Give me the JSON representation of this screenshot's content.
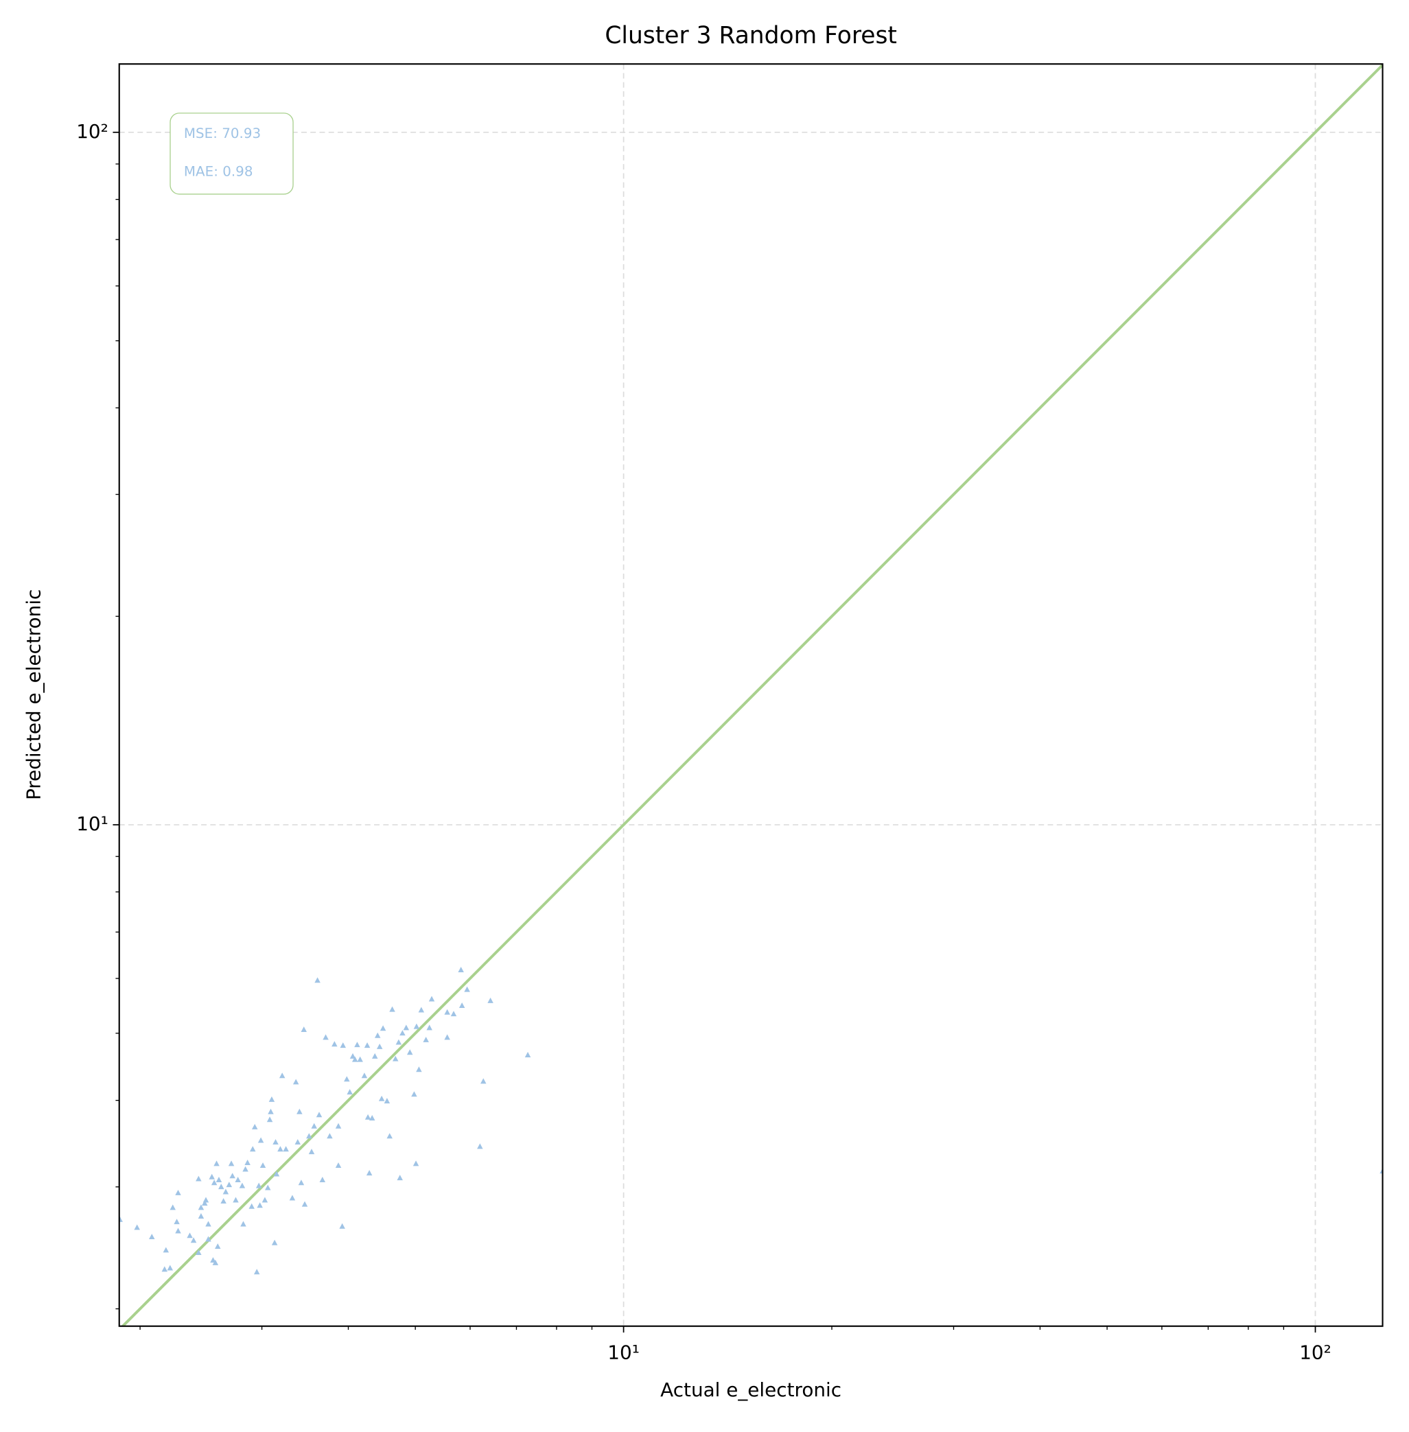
{
  "chart_data": {
    "type": "scatter",
    "title": "Cluster 3 Random Forest",
    "x_label": "Actual e_electronic",
    "y_label": "Predicted e_electronic",
    "log_x": true,
    "log_y": true,
    "grid": true,
    "xlim": [
      1.866,
      125.1
    ],
    "ylim": [
      1.888,
      125.5
    ],
    "xticks": [
      {
        "value": 10,
        "label": "10¹"
      },
      {
        "value": 100,
        "label": "10²"
      }
    ],
    "yticks": [
      {
        "value": 10,
        "label": "10¹"
      },
      {
        "value": 100,
        "label": "10²"
      }
    ],
    "xminorticks": [
      2,
      3,
      4,
      5,
      6,
      7,
      8,
      9,
      20,
      30,
      40,
      50,
      60,
      70,
      80,
      90
    ],
    "yminorticks": [
      2,
      3,
      4,
      5,
      6,
      7,
      8,
      9,
      20,
      30,
      40,
      50,
      60,
      70,
      80,
      90
    ],
    "identity_line_color": "#a9d18e",
    "annotations": [
      "MSE: 70.93",
      "MAE: 0.98"
    ],
    "series": [
      {
        "color": "#9fc3e5",
        "x": [
          1.87,
          1.98,
          2.08,
          2.18,
          2.17,
          2.21,
          2.23,
          2.27,
          2.26,
          2.27,
          2.36,
          2.39,
          2.43,
          2.43,
          2.45,
          2.45,
          2.48,
          2.49,
          2.51,
          2.51,
          2.55,
          2.57,
          2.54,
          2.56,
          2.58,
          2.6,
          2.59,
          2.62,
          2.64,
          2.66,
          2.69,
          2.71,
          2.72,
          2.75,
          2.77,
          2.81,
          2.82,
          2.84,
          2.86,
          2.9,
          2.91,
          2.93,
          2.95,
          2.97,
          2.98,
          2.99,
          3.01,
          3.03,
          3.06,
          3.08,
          3.09,
          3.1,
          3.13,
          3.14,
          3.15,
          3.19,
          3.21,
          3.25,
          3.32,
          3.36,
          3.38,
          3.4,
          3.42,
          3.45,
          3.46,
          3.51,
          3.54,
          3.57,
          3.61,
          3.63,
          3.67,
          3.71,
          3.76,
          3.82,
          3.87,
          3.87,
          3.92,
          3.93,
          3.98,
          4.02,
          4.06,
          4.09,
          4.12,
          4.16,
          4.22,
          4.26,
          4.27,
          4.29,
          4.33,
          4.37,
          4.41,
          4.44,
          4.47,
          4.49,
          4.55,
          4.59,
          4.63,
          4.68,
          4.73,
          4.75,
          4.79,
          4.85,
          4.91,
          4.98,
          5.01,
          5.02,
          5.06,
          5.1,
          5.18,
          5.24,
          5.28,
          5.56,
          5.56,
          5.68,
          5.82,
          5.84,
          5.94,
          6.2,
          6.27,
          6.42,
          7.27,
          125.1
        ],
        "values": [
          2.69,
          2.62,
          2.54,
          2.43,
          2.28,
          2.29,
          2.8,
          2.94,
          2.67,
          2.59,
          2.55,
          2.51,
          2.41,
          3.08,
          2.8,
          2.72,
          2.84,
          2.87,
          2.52,
          2.65,
          2.35,
          2.33,
          3.1,
          3.04,
          3.24,
          3.07,
          2.46,
          3.0,
          2.86,
          2.95,
          3.02,
          3.24,
          3.11,
          2.87,
          3.07,
          3.01,
          2.65,
          3.18,
          3.25,
          2.81,
          3.4,
          3.66,
          2.26,
          3.01,
          2.82,
          3.5,
          3.22,
          2.87,
          2.99,
          3.75,
          3.85,
          4.01,
          2.49,
          3.48,
          3.13,
          3.4,
          4.34,
          3.4,
          2.89,
          4.25,
          3.48,
          3.85,
          3.04,
          5.06,
          2.83,
          3.55,
          3.37,
          3.67,
          5.96,
          3.81,
          3.07,
          4.93,
          3.55,
          4.82,
          3.67,
          3.22,
          2.63,
          4.8,
          4.29,
          4.11,
          4.63,
          4.58,
          4.81,
          4.58,
          4.34,
          4.8,
          3.78,
          3.14,
          3.77,
          4.63,
          4.96,
          4.78,
          4.02,
          5.08,
          3.99,
          3.55,
          5.41,
          4.59,
          4.85,
          3.09,
          5.0,
          5.09,
          4.69,
          4.08,
          3.24,
          5.11,
          4.43,
          5.4,
          4.89,
          5.09,
          5.6,
          5.36,
          4.93,
          5.33,
          6.17,
          5.48,
          5.78,
          3.43,
          4.26,
          5.57,
          4.65,
          3.16
        ]
      }
    ]
  }
}
